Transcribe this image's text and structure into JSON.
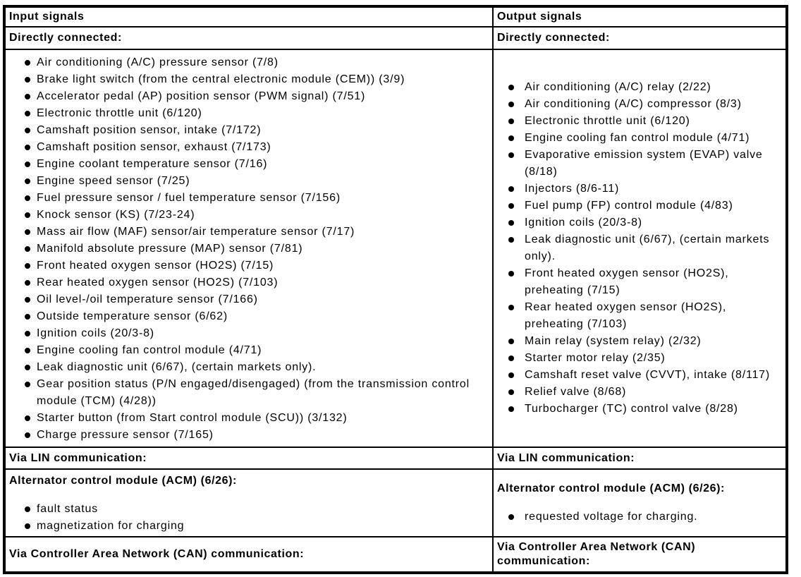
{
  "table": {
    "input": {
      "header": "Input signals",
      "directly_connected": {
        "label": "Directly connected:",
        "items": [
          "Air conditioning (A/C) pressure sensor (7/8)",
          "Brake light switch (from the central electronic module (CEM)) (3/9)",
          "Accelerator pedal (AP) position sensor (PWM signal) (7/51)",
          "Electronic throttle unit (6/120)",
          "Camshaft position sensor, intake (7/172)",
          "Camshaft position sensor, exhaust (7/173)",
          "Engine coolant temperature sensor (7/16)",
          "Engine speed sensor (7/25)",
          "Fuel pressure sensor / fuel temperature sensor (7/156)",
          "Knock sensor (KS) (7/23-24)",
          "Mass air flow (MAF) sensor/air temperature sensor (7/17)",
          "Manifold absolute pressure (MAP) sensor (7/81)",
          "Front heated oxygen sensor (HO2S) (7/15)",
          "Rear heated oxygen sensor (HO2S) (7/103)",
          "Oil level-/oil temperature sensor (7/166)",
          "Outside temperature sensor (6/62)",
          "Ignition coils (20/3-8)",
          "Engine cooling fan control module (4/71)",
          "Leak diagnostic unit (6/67), (certain markets only).",
          "Gear position status (P/N engaged/disengaged) (from the transmission control module (TCM) (4/28))",
          "Starter button (from Start control module (SCU)) (3/132)",
          "Charge pressure sensor (7/165)"
        ]
      },
      "via_lin_label": "Via LIN communication:",
      "acm": {
        "title": "Alternator control module (ACM) (6/26):",
        "items": [
          "fault status",
          "magnetization for charging"
        ]
      },
      "via_can_label": "Via Controller Area Network (CAN) communication:"
    },
    "output": {
      "header": "Output signals",
      "directly_connected": {
        "label": "Directly connected:",
        "items": [
          "Air conditioning (A/C) relay (2/22)",
          "Air conditioning (A/C) compressor (8/3)",
          "Electronic throttle unit (6/120)",
          "Engine cooling fan control module (4/71)",
          "Evaporative emission system (EVAP) valve (8/18)",
          "Injectors (8/6-11)",
          "Fuel pump (FP) control module (4/83)",
          "Ignition coils (20/3-8)",
          "Leak diagnostic unit (6/67), (certain markets only).",
          "Front heated oxygen sensor (HO2S), preheating (7/15)",
          "Rear heated oxygen sensor (HO2S), preheating (7/103)",
          "Main relay (system relay) (2/32)",
          "Starter motor relay (2/35)",
          "Camshaft reset valve (CVVT), intake (8/117)",
          "Relief valve (8/68)",
          "Turbocharger (TC) control valve (8/28)"
        ]
      },
      "via_lin_label": "Via LIN communication:",
      "acm": {
        "title": "Alternator control module (ACM) (6/26):",
        "items": [
          "requested voltage for charging."
        ]
      },
      "via_can_label": "Via Controller Area Network (CAN) communication:"
    }
  }
}
